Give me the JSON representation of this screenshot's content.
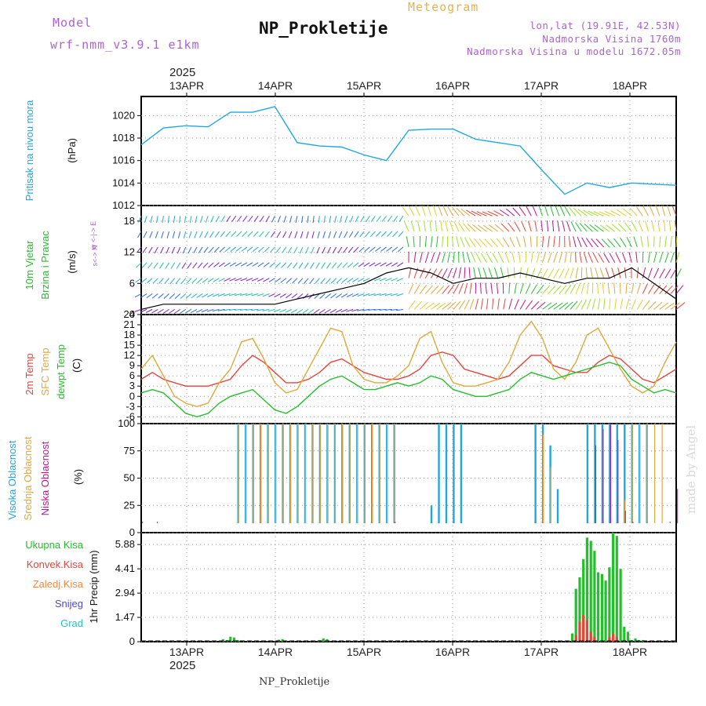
{
  "header": {
    "model_label": "Model",
    "model_name": "wrf-nmm_v3.9.1 e1km",
    "title": "NP_Prokletije",
    "meteogram_label": "Meteogram",
    "lonlat": "lon,lat (19.91E, 42.53N)",
    "altitude": "Nadmorska Visina 1760m",
    "model_altitude": "Nadmorska Visina u modelu 1672.05m"
  },
  "time_axis": {
    "year": "2025",
    "days": [
      "13APR",
      "14APR",
      "15APR",
      "16APR",
      "17APR",
      "18APR"
    ]
  },
  "footer": {
    "station": "NP_Prokletije"
  },
  "watermark": "made by Angel",
  "colors": {
    "pressure": "#1fa8e0",
    "wind_speed": "#000000",
    "temp_2m": "#e8443a",
    "temp_sfc": "#e0a83a",
    "dewpoint": "#22c02a",
    "cloud_high": "#1fa8e0",
    "cloud_mid": "#e0a83a",
    "cloud_low": "#c0148a",
    "precip_total": "#22c02a",
    "precip_conv": "#e8443a"
  },
  "chart_data": [
    {
      "type": "line",
      "ylabel_main": "Pritisak na nivou mora",
      "ylabel_unit": "(hPa)",
      "yticks": [
        1012,
        1014,
        1016,
        1018,
        1020
      ],
      "ylim": [
        1012,
        1021.7
      ],
      "x_hours": [
        0,
        6,
        12,
        18,
        24,
        30,
        36,
        42,
        48,
        54,
        60,
        66,
        72,
        78,
        84,
        90,
        96,
        102,
        108,
        114,
        120,
        126,
        132,
        138,
        144
      ],
      "series": [
        {
          "values": [
            1017.4,
            1018.9,
            1019.1,
            1019.0,
            1020.3,
            1020.3,
            1020.8,
            1017.6,
            1017.3,
            1017.2,
            1016.5,
            1016.0,
            1018.7,
            1018.8,
            1018.8,
            1017.9,
            1017.6,
            1017.3,
            1015.1,
            1013.0,
            1014.0,
            1013.6,
            1014.0,
            1013.9,
            1013.8
          ]
        }
      ],
      "grid": true
    },
    {
      "type": "line",
      "ylabel_main": "10m Vjetar",
      "ylabel_sub": "Brzina i Pravac",
      "ylabel_unit": "(m/s)",
      "direction_legend": "w <-|-> E",
      "direction_legend_2": "s<-> N",
      "yticks": [
        0,
        6,
        12,
        18
      ],
      "ylim": [
        0,
        21
      ],
      "x_hours": [
        0,
        6,
        12,
        18,
        24,
        30,
        36,
        42,
        48,
        54,
        60,
        66,
        72,
        78,
        84,
        90,
        96,
        102,
        108,
        114,
        120,
        126,
        132,
        138,
        144
      ],
      "series": [
        {
          "values": [
            1,
            2,
            2,
            2,
            2,
            2,
            2,
            3,
            4,
            5,
            6,
            8,
            9,
            8,
            6,
            7,
            7,
            8,
            7,
            6,
            7,
            7,
            9,
            6,
            3
          ]
        }
      ],
      "grid": true
    },
    {
      "type": "line",
      "ylabel_1": "2m Temp",
      "ylabel_2": "SFC Temp",
      "ylabel_3": "dewpt Temp",
      "ylabel_unit": "(C)",
      "yticks": [
        -6,
        -3,
        0,
        3,
        6,
        9,
        12,
        15,
        18,
        21,
        24
      ],
      "ylim": [
        -8,
        24
      ],
      "x_hours": [
        0,
        3,
        6,
        9,
        12,
        15,
        18,
        21,
        24,
        27,
        30,
        33,
        36,
        39,
        42,
        45,
        48,
        51,
        54,
        57,
        60,
        63,
        66,
        69,
        72,
        75,
        78,
        81,
        84,
        87,
        90,
        93,
        96,
        99,
        102,
        105,
        108,
        111,
        114,
        117,
        120,
        123,
        126,
        129,
        132,
        135,
        138,
        141,
        144
      ],
      "series": [
        {
          "name": "2m Temp",
          "values": [
            5,
            7,
            5,
            4,
            3,
            3,
            3,
            4,
            5,
            9,
            12,
            10,
            7,
            4,
            4,
            5,
            7,
            10,
            11,
            9,
            7,
            6,
            5,
            5,
            6,
            8,
            12,
            13,
            12,
            8,
            7,
            6,
            5,
            6,
            9,
            12,
            12,
            9,
            8,
            7,
            7,
            10,
            12,
            11,
            8,
            5,
            4,
            6,
            8
          ]
        },
        {
          "name": "SFC Temp",
          "values": [
            8,
            12,
            6,
            0,
            -2,
            -3,
            -2,
            4,
            8,
            16,
            17,
            11,
            4,
            1,
            2,
            8,
            14,
            20,
            19,
            9,
            5,
            4,
            4,
            6,
            9,
            17,
            19,
            10,
            4,
            3,
            3,
            4,
            5,
            10,
            18,
            22,
            17,
            8,
            5,
            10,
            18,
            20,
            14,
            8,
            3,
            1,
            3,
            10,
            16
          ]
        },
        {
          "name": "dewpt Temp",
          "values": [
            1,
            2,
            1,
            -2,
            -5,
            -6,
            -5,
            -2,
            0,
            1,
            2,
            -1,
            -4,
            -5,
            -3,
            0,
            3,
            5,
            6,
            4,
            2,
            2,
            3,
            4,
            3,
            4,
            6,
            5,
            2,
            1,
            0,
            0,
            1,
            2,
            5,
            7,
            6,
            5,
            6,
            7,
            8,
            9,
            10,
            9,
            5,
            3,
            1,
            2,
            1
          ]
        }
      ],
      "grid": true
    },
    {
      "type": "bar",
      "ylabel_1": "Visoka Oblacnost",
      "ylabel_2": "Srednja Oblacnost",
      "ylabel_3": "Niska Oblacnost",
      "ylabel_unit": "(%)",
      "yticks": [
        0,
        25,
        50,
        75,
        100
      ],
      "ylim": [
        0,
        100
      ],
      "x_hours": [
        0,
        2,
        4,
        6,
        8,
        10,
        12,
        14,
        16,
        18,
        20,
        22,
        24,
        26,
        28,
        30,
        32,
        34,
        36,
        38,
        40,
        42,
        44,
        46,
        48,
        50,
        52,
        54,
        56,
        58,
        60,
        62,
        64,
        66,
        68,
        70,
        72,
        74,
        76,
        78,
        80,
        82,
        84,
        86,
        88,
        90,
        92,
        94,
        96,
        98,
        100,
        102,
        104,
        106,
        108,
        110,
        112,
        114,
        116,
        118,
        120,
        122,
        124,
        126,
        128,
        130,
        132,
        134,
        136,
        138,
        140,
        142,
        144
      ],
      "series": [
        {
          "name": "Visoka Oblacnost",
          "values": [
            0,
            0,
            0,
            0,
            0,
            0,
            0,
            0,
            0,
            0,
            0,
            0,
            0,
            100,
            100,
            100,
            100,
            100,
            100,
            100,
            100,
            100,
            100,
            100,
            100,
            100,
            100,
            100,
            100,
            100,
            100,
            100,
            100,
            100,
            100,
            0,
            0,
            0,
            0,
            25,
            100,
            100,
            100,
            100,
            0,
            0,
            0,
            0,
            0,
            0,
            0,
            0,
            0,
            100,
            100,
            80,
            40,
            0,
            0,
            0,
            100,
            100,
            100,
            100,
            100,
            100,
            100,
            100,
            100,
            0,
            0,
            0,
            0
          ]
        },
        {
          "name": "Srednja Oblacnost",
          "values": [
            0,
            0,
            0,
            0,
            0,
            0,
            0,
            0,
            0,
            0,
            0,
            0,
            0,
            100,
            100,
            100,
            100,
            100,
            100,
            100,
            100,
            100,
            100,
            100,
            100,
            100,
            100,
            100,
            100,
            100,
            100,
            100,
            100,
            100,
            100,
            0,
            0,
            0,
            0,
            0,
            0,
            0,
            0,
            0,
            0,
            0,
            0,
            0,
            0,
            0,
            0,
            0,
            0,
            0,
            90,
            60,
            0,
            0,
            0,
            0,
            0,
            0,
            0,
            0,
            0,
            30,
            100,
            100,
            100,
            100,
            100,
            0,
            0
          ]
        },
        {
          "name": "Niska Oblacnost",
          "values": [
            10,
            8,
            10,
            0,
            0,
            0,
            0,
            0,
            0,
            5,
            0,
            0,
            0,
            0,
            0,
            0,
            0,
            0,
            0,
            0,
            0,
            0,
            0,
            0,
            0,
            0,
            0,
            0,
            0,
            0,
            0,
            0,
            0,
            0,
            10,
            0,
            8,
            0,
            0,
            0,
            0,
            0,
            0,
            0,
            0,
            0,
            0,
            0,
            0,
            0,
            0,
            0,
            0,
            0,
            0,
            0,
            0,
            0,
            0,
            0,
            0,
            80,
            95,
            100,
            85,
            20,
            10,
            0,
            0,
            0,
            5,
            10,
            40
          ]
        }
      ],
      "grid": true
    },
    {
      "type": "bar",
      "legend": [
        "Ukupna Kisa",
        "Konvek.Kisa",
        "Zaledj.Kisa",
        "Snijeg",
        "Grad"
      ],
      "ylabel_unit": "1hr Precip (mm)",
      "yticks": [
        0,
        1.47,
        2.94,
        4.41,
        5.88
      ],
      "ylim": [
        0,
        6.6
      ],
      "x_hours": [
        22,
        23,
        24,
        25,
        26,
        37,
        38,
        48,
        49,
        50,
        116,
        117,
        118,
        119,
        120,
        121,
        122,
        123,
        124,
        125,
        126,
        127,
        128,
        129,
        130,
        131,
        132,
        133,
        134,
        135
      ],
      "series": [
        {
          "name": "Ukupna Kisa",
          "values": [
            0.15,
            0.1,
            0.3,
            0.25,
            0.1,
            0.12,
            0.15,
            0.1,
            0.2,
            0.15,
            0.5,
            3.2,
            3.9,
            5.0,
            6.3,
            6.1,
            5.5,
            4.2,
            4.1,
            3.7,
            4.5,
            6.6,
            6.4,
            4.4,
            0.9,
            0.6,
            0.1,
            0.2,
            0.1,
            0.1
          ]
        },
        {
          "name": "Konvek.Kisa",
          "values": [
            0,
            0,
            0,
            0,
            0,
            0,
            0,
            0,
            0,
            0,
            0,
            0.4,
            1.2,
            1.6,
            1.3,
            0.6,
            0.3,
            0,
            0,
            0,
            0.3,
            0.5,
            0.3,
            0,
            0,
            0,
            0,
            0,
            0,
            0
          ]
        }
      ],
      "grid": true
    }
  ]
}
